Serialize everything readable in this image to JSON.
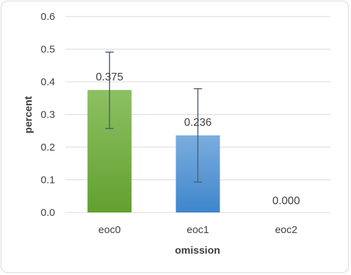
{
  "chart_data": {
    "type": "bar",
    "title": "",
    "xlabel": "omission",
    "ylabel": "percent",
    "categories": [
      "eoc0",
      "eoc1",
      "eoc2"
    ],
    "values": [
      0.375,
      0.236,
      0.0
    ],
    "data_labels": [
      "0.375",
      "0.236",
      "0.000"
    ],
    "error_low": [
      0.257,
      0.093,
      0.0
    ],
    "error_high": [
      0.491,
      0.379,
      0.0
    ],
    "ylim": [
      0,
      0.6
    ],
    "yticks": [
      "0.0",
      "0.1",
      "0.2",
      "0.3",
      "0.4",
      "0.5",
      "0.6"
    ],
    "grid": true,
    "legend": "none",
    "colors": {
      "eoc0_top": "#8dc063",
      "eoc0_bottom": "#62a02f",
      "eoc1_top": "#7badde",
      "eoc1_bottom": "#3e86cc",
      "error_bar": "#4d6175",
      "grid": "#d9d9d9"
    }
  }
}
